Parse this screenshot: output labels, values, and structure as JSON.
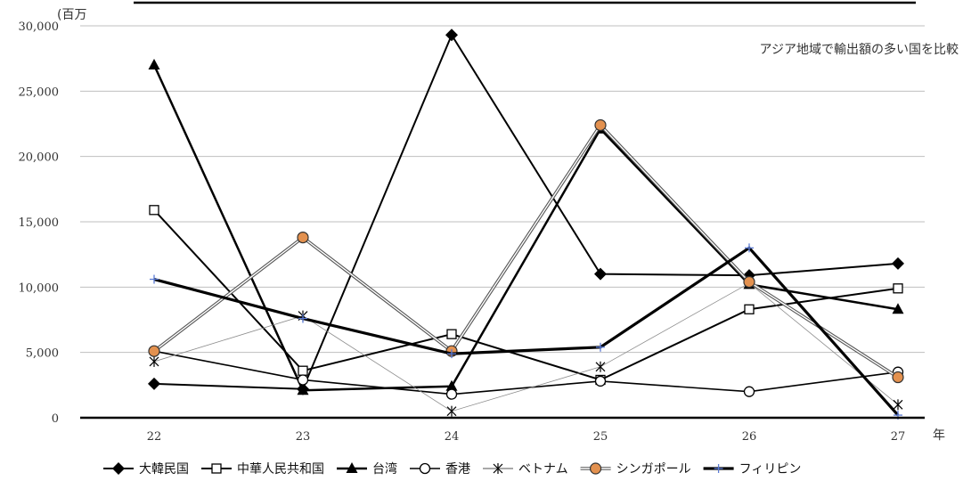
{
  "chart_data": {
    "type": "line",
    "title": "",
    "annotation": "アジア地域で輸出額の多い国を比較",
    "yunit": "(百万",
    "xunit": "年",
    "x": [
      "22",
      "23",
      "24",
      "25",
      "26",
      "27"
    ],
    "ylim": [
      0,
      30000
    ],
    "yticks": [
      "0",
      "5,000",
      "10,000",
      "15,000",
      "20,000",
      "25,000",
      "30,000"
    ],
    "grid": "horizontal",
    "legend_position": "bottom",
    "series": [
      {
        "name": "大韓民国",
        "values": [
          2600,
          2200,
          29300,
          11000,
          10900,
          11800
        ],
        "marker": "diamond",
        "color": "#000000"
      },
      {
        "name": "中華人民共和国",
        "values": [
          15900,
          3600,
          6400,
          2900,
          8300,
          9900
        ],
        "marker": "square-open",
        "color": "#000000"
      },
      {
        "name": "台湾",
        "values": [
          27000,
          2100,
          2400,
          22100,
          10200,
          8300
        ],
        "marker": "triangle",
        "color": "#000000"
      },
      {
        "name": "香港",
        "values": [
          5100,
          2900,
          1800,
          2800,
          2000,
          3500
        ],
        "marker": "circle-open",
        "color": "#000000"
      },
      {
        "name": "ベトナム",
        "values": [
          4300,
          7800,
          500,
          3900,
          10300,
          1000
        ],
        "marker": "asterisk",
        "color": "#555555"
      },
      {
        "name": "シンガポール",
        "values": [
          5100,
          13800,
          5100,
          22400,
          10400,
          3100
        ],
        "marker": "circle-orange",
        "color": "#555555"
      },
      {
        "name": "フィリピン",
        "values": [
          10600,
          7600,
          4900,
          5400,
          13000,
          200
        ],
        "marker": "plus",
        "color": "#000000"
      }
    ]
  }
}
